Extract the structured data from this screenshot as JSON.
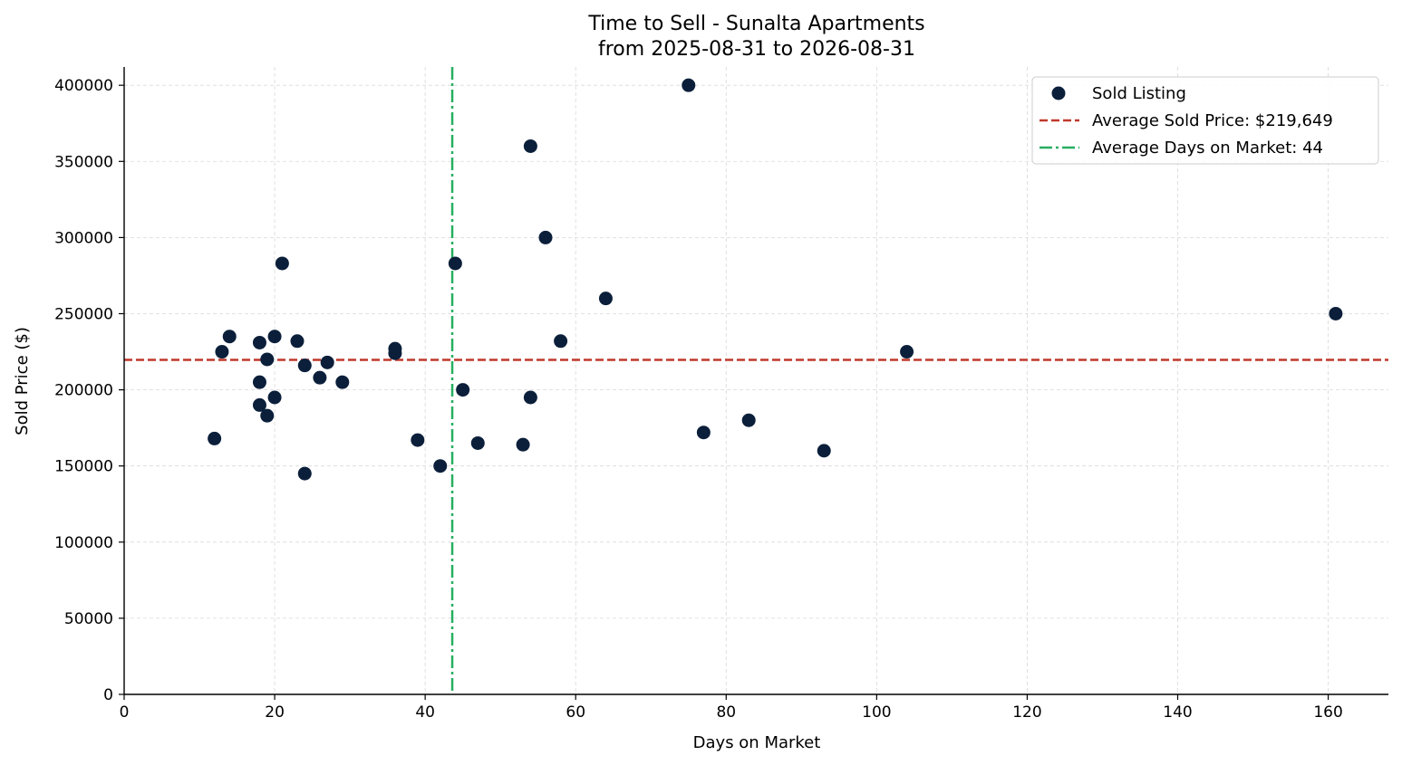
{
  "chart_data": {
    "type": "scatter",
    "title": "Time to Sell - Sunalta Apartments",
    "subtitle": "from 2025-08-31 to 2026-08-31",
    "xlabel": "Days on Market",
    "ylabel": "Sold Price ($)",
    "xlim": [
      0,
      168
    ],
    "ylim": [
      0,
      412000
    ],
    "xticks": [
      0,
      20,
      40,
      60,
      80,
      100,
      120,
      140,
      160
    ],
    "yticks": [
      0,
      50000,
      100000,
      150000,
      200000,
      250000,
      300000,
      350000,
      400000
    ],
    "grid": true,
    "legend_position": "top-right",
    "colors": {
      "points": "#0b1f3a",
      "avg_price_line": "#c0392b",
      "avg_days_line": "#27ae60"
    },
    "series": [
      {
        "name": "Sold Listing",
        "points": [
          {
            "x": 12,
            "y": 168000
          },
          {
            "x": 13,
            "y": 225000
          },
          {
            "x": 14,
            "y": 235000
          },
          {
            "x": 18,
            "y": 231000
          },
          {
            "x": 18,
            "y": 205000
          },
          {
            "x": 18,
            "y": 190000
          },
          {
            "x": 19,
            "y": 220000
          },
          {
            "x": 19,
            "y": 183000
          },
          {
            "x": 20,
            "y": 235000
          },
          {
            "x": 20,
            "y": 195000
          },
          {
            "x": 21,
            "y": 283000
          },
          {
            "x": 23,
            "y": 232000
          },
          {
            "x": 24,
            "y": 216000
          },
          {
            "x": 24,
            "y": 145000
          },
          {
            "x": 26,
            "y": 208000
          },
          {
            "x": 27,
            "y": 218000
          },
          {
            "x": 29,
            "y": 205000
          },
          {
            "x": 36,
            "y": 227000
          },
          {
            "x": 36,
            "y": 224000
          },
          {
            "x": 39,
            "y": 167000
          },
          {
            "x": 42,
            "y": 150000
          },
          {
            "x": 44,
            "y": 283000
          },
          {
            "x": 45,
            "y": 200000
          },
          {
            "x": 47,
            "y": 165000
          },
          {
            "x": 53,
            "y": 164000
          },
          {
            "x": 54,
            "y": 360000
          },
          {
            "x": 54,
            "y": 195000
          },
          {
            "x": 56,
            "y": 300000
          },
          {
            "x": 58,
            "y": 232000
          },
          {
            "x": 64,
            "y": 260000
          },
          {
            "x": 75,
            "y": 400000
          },
          {
            "x": 77,
            "y": 172000
          },
          {
            "x": 83,
            "y": 180000
          },
          {
            "x": 93,
            "y": 160000
          },
          {
            "x": 104,
            "y": 225000
          },
          {
            "x": 161,
            "y": 250000
          }
        ]
      }
    ],
    "reference_lines": [
      {
        "name": "Average Sold Price: $219,649",
        "orientation": "horizontal",
        "value": 219649,
        "style": "dashed"
      },
      {
        "name": "Average Days on Market: 44",
        "orientation": "vertical",
        "value": 43.6,
        "style": "dashdot"
      }
    ]
  }
}
